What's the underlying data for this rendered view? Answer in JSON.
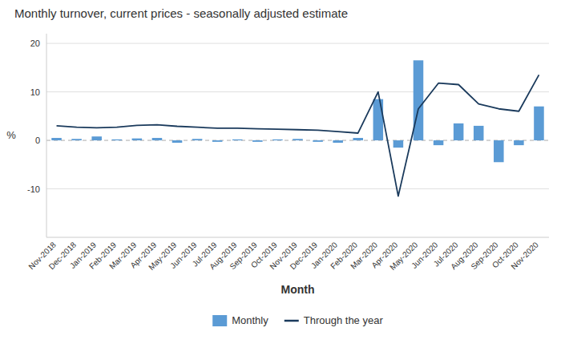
{
  "chart_data": {
    "type": "bar",
    "title": "Monthly turnover, current prices - seasonally adjusted estimate",
    "x_label": "Month",
    "y_label": "%",
    "categories": [
      "Nov-2018",
      "Dec-2018",
      "Jan-2019",
      "Feb-2019",
      "Mar-2019",
      "Apr-2019",
      "May-2019",
      "Jun-2019",
      "Jul-2019",
      "Aug-2019",
      "Sep-2019",
      "Oct-2019",
      "Nov-2019",
      "Dec-2019",
      "Jan-2020",
      "Feb-2020",
      "Mar-2020",
      "Apr-2020",
      "May-2020",
      "Jun-2020",
      "Jul-2020",
      "Aug-2020",
      "Sep-2020",
      "Oct-2020",
      "Nov-2020"
    ],
    "series": [
      {
        "name": "Monthly",
        "type": "bar",
        "color": "#5B9BD5",
        "values": [
          0.5,
          0.3,
          0.8,
          0.2,
          0.4,
          0.5,
          -0.5,
          0.3,
          -0.3,
          0.2,
          -0.3,
          0.2,
          0.3,
          -0.3,
          -0.5,
          0.5,
          8.5,
          -1.5,
          16.5,
          -1.0,
          3.5,
          3.0,
          -4.5,
          -1.0,
          7.0
        ]
      },
      {
        "name": "Through the year",
        "type": "line",
        "color": "#1a3a5c",
        "values": [
          3.0,
          2.7,
          2.6,
          2.7,
          3.1,
          3.2,
          2.9,
          2.7,
          2.5,
          2.5,
          2.4,
          2.3,
          2.2,
          2.1,
          1.8,
          1.5,
          10.0,
          -11.5,
          6.5,
          11.8,
          11.5,
          7.5,
          6.5,
          6.0,
          13.5
        ]
      }
    ],
    "ylim": [
      -20,
      22
    ],
    "yticks": [
      -10,
      0,
      10,
      20
    ],
    "grid": true,
    "legend": "bottom"
  }
}
